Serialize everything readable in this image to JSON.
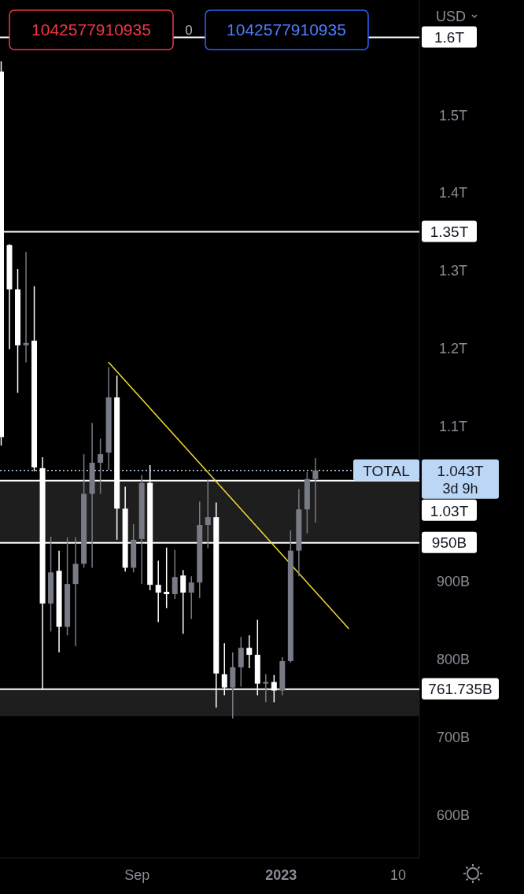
{
  "chart_data": {
    "type": "candlestick",
    "x": [
      "2022-05-09",
      "2022-05-16",
      "2022-05-23",
      "2022-05-30",
      "2022-06-06",
      "2022-06-13",
      "2022-06-20",
      "2022-06-27",
      "2022-07-04",
      "2022-07-11",
      "2022-07-18",
      "2022-07-25",
      "2022-08-01",
      "2022-08-08",
      "2022-08-15",
      "2022-08-22",
      "2022-08-29",
      "2022-09-05",
      "2022-09-12",
      "2022-09-19",
      "2022-09-26",
      "2022-10-03",
      "2022-10-10",
      "2022-10-17",
      "2022-10-24",
      "2022-10-31",
      "2022-11-07",
      "2022-11-14",
      "2022-11-21",
      "2022-11-28",
      "2022-12-05",
      "2022-12-12",
      "2022-12-19",
      "2022-12-26",
      "2023-01-02",
      "2023-01-09",
      "2023-01-16",
      "2023-01-23",
      "2023-01-30"
    ],
    "ohlc": [
      [
        1556000000000.0,
        1569000000000.0,
        1075000000000.0,
        1086000000000.0
      ],
      [
        1333000000000.0,
        1334000000000.0,
        1199000000000.0,
        1276000000000.0
      ],
      [
        1276000000000.0,
        1302000000000.0,
        1143000000000.0,
        1204000000000.0
      ],
      [
        1204000000000.0,
        1324000000000.0,
        1182000000000.0,
        1207000000000.0
      ],
      [
        1210000000000.0,
        1280000000000.0,
        1042000000000.0,
        1047000000000.0
      ],
      [
        1046000000000.0,
        1060000000000.0,
        762000000000.0,
        872000000000.0
      ],
      [
        872000000000.0,
        958000000000.0,
        836000000000.0,
        912000000000.0
      ],
      [
        914000000000.0,
        940000000000.0,
        809000000000.0,
        842000000000.0
      ],
      [
        842000000000.0,
        957000000000.0,
        831000000000.0,
        897000000000.0
      ],
      [
        897000000000.0,
        957000000000.0,
        817000000000.0,
        923000000000.0
      ],
      [
        923000000000.0,
        1064000000000.0,
        918000000000.0,
        1013000000000.0
      ],
      [
        1013000000000.0,
        1104000000000.0,
        918000000000.0,
        1053000000000.0
      ],
      [
        1053000000000.0,
        1084000000000.0,
        1013000000000.0,
        1064000000000.0
      ],
      [
        1066000000000.0,
        1176000000000.0,
        1044000000000.0,
        1137000000000.0
      ],
      [
        1137000000000.0,
        1165000000000.0,
        954000000000.0,
        994000000000.0
      ],
      [
        994000000000.0,
        1022000000000.0,
        913000000000.0,
        918000000000.0
      ],
      [
        918000000000.0,
        974000000000.0,
        912000000000.0,
        954000000000.0
      ],
      [
        955000000000.0,
        1037000000000.0,
        897000000000.0,
        1027000000000.0
      ],
      [
        1027000000000.0,
        1050000000000.0,
        889000000000.0,
        896000000000.0
      ],
      [
        896000000000.0,
        927000000000.0,
        848000000000.0,
        886000000000.0
      ],
      [
        887000000000.0,
        944000000000.0,
        866000000000.0,
        884000000000.0
      ],
      [
        884000000000.0,
        941000000000.0,
        878000000000.0,
        906000000000.0
      ],
      [
        908000000000.0,
        915000000000.0,
        833000000000.0,
        886000000000.0
      ],
      [
        886000000000.0,
        907000000000.0,
        852000000000.0,
        899000000000.0
      ],
      [
        899000000000.0,
        1003000000000.0,
        879000000000.0,
        973000000000.0
      ],
      [
        973000000000.0,
        1031000000000.0,
        943000000000.0,
        983000000000.0
      ],
      [
        983000000000.0,
        1002000000000.0,
        738000000000.0,
        782000000000.0
      ],
      [
        781000000000.0,
        821000000000.0,
        754000000000.0,
        764000000000.0
      ],
      [
        764000000000.0,
        809000000000.0,
        724000000000.0,
        790000000000.0
      ],
      [
        790000000000.0,
        829000000000.0,
        765000000000.0,
        815000000000.0
      ],
      [
        815000000000.0,
        831000000000.0,
        789000000000.0,
        806000000000.0
      ],
      [
        806000000000.0,
        851000000000.0,
        754000000000.0,
        769000000000.0
      ],
      [
        769000000000.0,
        781000000000.0,
        745000000000.0,
        771000000000.0
      ],
      [
        771000000000.0,
        780000000000.0,
        745000000000.0,
        760000000000.0
      ],
      [
        760000000000.0,
        803000000000.0,
        754000000000.0,
        798000000000.0
      ],
      [
        798000000000.0,
        966000000000.0,
        796000000000.0,
        940000000000.0
      ],
      [
        940000000000.0,
        1019000000000.0,
        907000000000.0,
        993000000000.0
      ],
      [
        993000000000.0,
        1041000000000.0,
        962000000000.0,
        1032000000000.0
      ],
      [
        1032000000000.0,
        1059000000000.0,
        976000000000.0,
        1043000000000.0
      ]
    ],
    "colors": [
      "#ffffff",
      "#ffffff",
      "#ffffff",
      "#787b86",
      "#ffffff",
      "#ffffff",
      "#787b86",
      "#ffffff",
      "#787b86",
      "#787b86",
      "#787b86",
      "#787b86",
      "#787b86",
      "#787b86",
      "#ffffff",
      "#ffffff",
      "#787b86",
      "#787b86",
      "#ffffff",
      "#ffffff",
      "#ffffff",
      "#787b86",
      "#ffffff",
      "#787b86",
      "#787b86",
      "#787b86",
      "#ffffff",
      "#ffffff",
      "#787b86",
      "#787b86",
      "#ffffff",
      "#ffffff",
      "#787b86",
      "#ffffff",
      "#787b86",
      "#787b86",
      "#787b86",
      "#787b86",
      "#787b86"
    ],
    "series": [
      {
        "type": "line",
        "color": "#f0dc32",
        "x": [
          "2022-08-08",
          "2023-02-27"
        ],
        "values": [
          1182000000000.0,
          840000000000.0
        ]
      }
    ],
    "xlim": [
      "2022-05-08",
      "2023-04-28"
    ],
    "xticks": [
      {
        "value": "2022-09-01",
        "label": "Sep"
      },
      {
        "value": "2023-01-01",
        "label": "2023"
      },
      {
        "value": "2023-04-10",
        "label": "10"
      }
    ],
    "ylim": [
      545000000000.0,
      1648000000000.0
    ],
    "yticks": [
      {
        "value": 1500000000000.0,
        "label": "1.5T"
      },
      {
        "value": 1400000000000.0,
        "label": "1.4T"
      },
      {
        "value": 1300000000000.0,
        "label": "1.3T"
      },
      {
        "value": 1200000000000.0,
        "label": "1.2T"
      },
      {
        "value": 1100000000000.0,
        "label": "1.1T"
      },
      {
        "value": 900000000000.0,
        "label": "900B"
      },
      {
        "value": 800000000000.0,
        "label": "800B"
      },
      {
        "value": 700000000000.0,
        "label": "700B"
      },
      {
        "value": 600000000000.0,
        "label": "600B"
      }
    ],
    "ref_lines": [
      {
        "axis": "y",
        "value": 1600000000000.0,
        "label": "1.6T"
      },
      {
        "axis": "y",
        "value": 1350000000000.0,
        "label": "1.35T"
      },
      {
        "axis": "y",
        "value": 1043000000000.0,
        "label": "1.043T",
        "color": "#bcd6f5",
        "line_style": "dotted"
      },
      {
        "axis": "y",
        "value": 1030000000000.0,
        "label": "1.03T"
      },
      {
        "axis": "y",
        "value": 950000000000.0,
        "label": "950B"
      },
      {
        "axis": "y",
        "value": 761735000000.0,
        "label": "761.735B"
      }
    ],
    "bands": [
      {
        "axis": "y",
        "from": 950000000000.0,
        "to": 1030000000000.0,
        "color": "#1e1e1e"
      },
      {
        "axis": "y",
        "from": 727000000000.0,
        "to": 761735000000.0,
        "color": "#1e1e1e"
      }
    ],
    "annotations": [
      "1042577910935",
      "0",
      "1042577910935",
      "USD",
      "TOTAL",
      "3d 9h"
    ]
  }
}
